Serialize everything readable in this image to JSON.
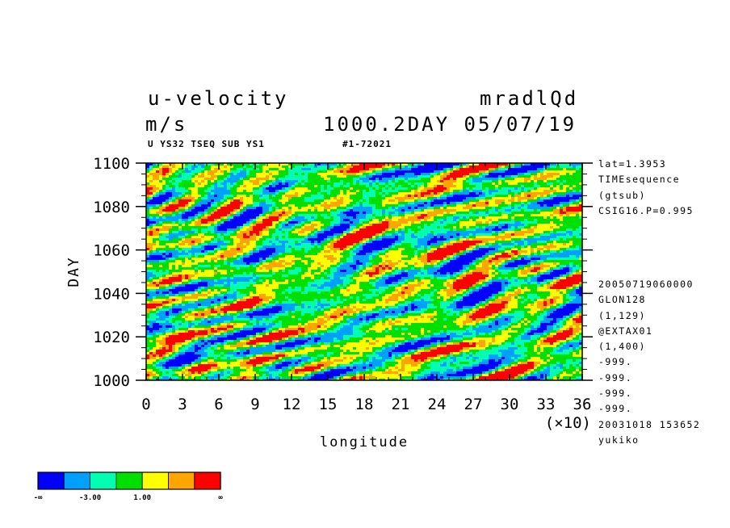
{
  "header": {
    "title_left": "u-velocity",
    "title_right": "mradlQd",
    "units": "m/s",
    "time_label": "1000.2DAY 05/07/19",
    "subtitle_left": "U YS32 TSEQ SUB YS1",
    "subtitle_right": "#1-72021"
  },
  "side_info": {
    "top": [
      "lat=1.3953",
      "TIMEsequence",
      "(gtsub)",
      "CSIG16.P=0.995"
    ],
    "bottom": [
      "20050719060000",
      "GLON128",
      "(1,129)",
      "@EXTAX01",
      "(1,400)",
      "-999.",
      "-999.",
      "-999.",
      "-999.",
      "20031018 153652",
      "yukiko"
    ]
  },
  "colors": {
    "levels": [
      "#0000ff",
      "#00a0ff",
      "#00ffb0",
      "#00e000",
      "#ffff00",
      "#ffa500",
      "#ff0000"
    ]
  },
  "chart_data": {
    "type": "heatmap",
    "xlabel": "longitude",
    "ylabel": "DAY",
    "x_multiplier": "(×10)",
    "xlim": [
      0,
      36
    ],
    "ylim": [
      1000,
      1100
    ],
    "x_ticks": [
      "0",
      "3",
      "6",
      "9",
      "12",
      "15",
      "18",
      "21",
      "24",
      "27",
      "30",
      "33",
      "36"
    ],
    "y_ticks": [
      "1000",
      "1020",
      "1040",
      "1060",
      "1080",
      "1100"
    ],
    "colorbar": {
      "labels": [
        "-∞",
        "-3.00",
        "1.00",
        "∞"
      ]
    }
  }
}
